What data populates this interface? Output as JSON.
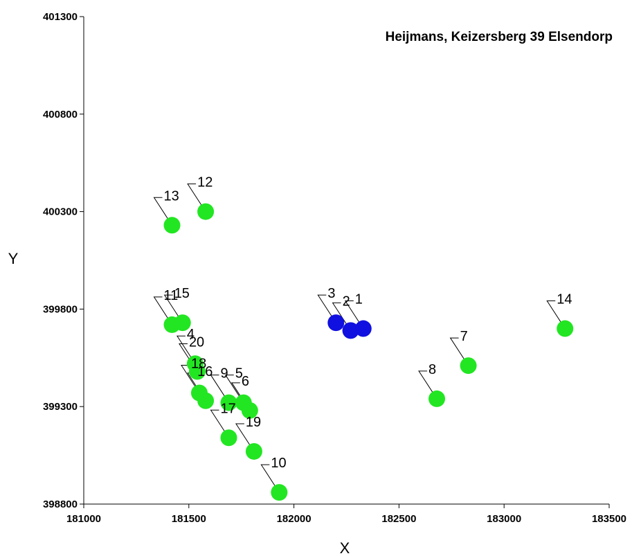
{
  "chart_data": {
    "type": "scatter",
    "title": "Heijmans, Keizersberg 39 Elsendorp",
    "xlabel": "X",
    "ylabel": "Y",
    "xlim": [
      181000,
      183500
    ],
    "ylim": [
      398800,
      401300
    ],
    "xticks": [
      181000,
      181500,
      182000,
      182500,
      183000,
      183500
    ],
    "yticks": [
      398800,
      399300,
      399800,
      400300,
      400800,
      401300
    ],
    "xtick_labels": [
      "181000",
      "181500",
      "182000",
      "182500",
      "183000",
      "183500"
    ],
    "ytick_labels": [
      "398800",
      "399300",
      "399800",
      "400300",
      "400800",
      "401300"
    ],
    "grid": false,
    "legend": "none",
    "colors": {
      "green": "#22e622",
      "blue": "#1010e0"
    },
    "points": [
      {
        "label": "1",
        "x": 182330,
        "y": 399700,
        "color": "blue"
      },
      {
        "label": "2",
        "x": 182270,
        "y": 399690,
        "color": "blue"
      },
      {
        "label": "3",
        "x": 182200,
        "y": 399730,
        "color": "blue"
      },
      {
        "label": "4",
        "x": 181530,
        "y": 399520,
        "color": "green"
      },
      {
        "label": "5",
        "x": 181760,
        "y": 399320,
        "color": "green"
      },
      {
        "label": "6",
        "x": 181790,
        "y": 399280,
        "color": "green"
      },
      {
        "label": "7",
        "x": 182830,
        "y": 399510,
        "color": "green"
      },
      {
        "label": "8",
        "x": 182680,
        "y": 399340,
        "color": "green"
      },
      {
        "label": "9",
        "x": 181690,
        "y": 399320,
        "color": "green"
      },
      {
        "label": "10",
        "x": 181930,
        "y": 398860,
        "color": "green"
      },
      {
        "label": "11",
        "x": 181420,
        "y": 399720,
        "color": "green"
      },
      {
        "label": "12",
        "x": 181580,
        "y": 400300,
        "color": "green"
      },
      {
        "label": "13",
        "x": 181420,
        "y": 400230,
        "color": "green"
      },
      {
        "label": "14",
        "x": 183290,
        "y": 399700,
        "color": "green"
      },
      {
        "label": "15",
        "x": 181470,
        "y": 399730,
        "color": "green"
      },
      {
        "label": "16",
        "x": 181580,
        "y": 399330,
        "color": "green"
      },
      {
        "label": "17",
        "x": 181690,
        "y": 399140,
        "color": "green"
      },
      {
        "label": "18",
        "x": 181550,
        "y": 399370,
        "color": "green"
      },
      {
        "label": "19",
        "x": 181810,
        "y": 399070,
        "color": "green"
      },
      {
        "label": "20",
        "x": 181540,
        "y": 399480,
        "color": "green"
      }
    ]
  }
}
